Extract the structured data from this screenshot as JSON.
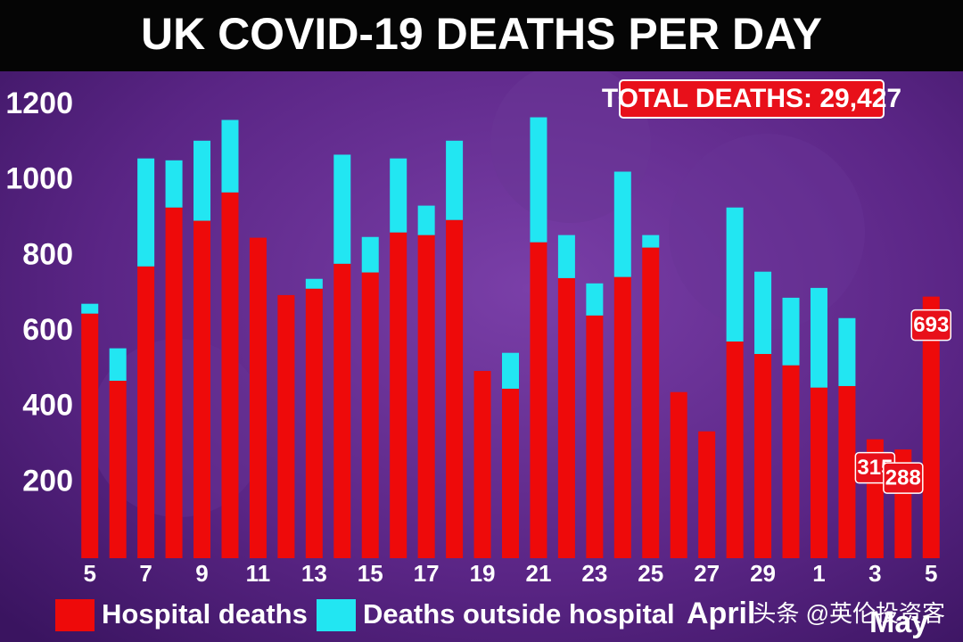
{
  "chart_data": {
    "type": "stacked_bar",
    "title": "UK COVID-19 DEATHS PER DAY",
    "annotation": "TOTAL DEATHS: 29,427",
    "categories": [
      "5",
      null,
      "7",
      null,
      "9",
      null,
      "11",
      null,
      "13",
      null,
      "15",
      null,
      "17",
      null,
      "19",
      null,
      "21",
      null,
      "23",
      null,
      "25",
      null,
      "27",
      null,
      "29",
      null,
      "1",
      null,
      "3",
      null,
      "5"
    ],
    "month_labels": [
      "April",
      "May"
    ],
    "series": [
      {
        "name": "Hospital deaths",
        "color": "#ee0a0a",
        "values": [
          648,
          470,
          773,
          929,
          894,
          969,
          849,
          697,
          714,
          780,
          757,
          863,
          856,
          896,
          496,
          449,
          837,
          742,
          643,
          745,
          823,
          440,
          336,
          574,
          541,
          511,
          452,
          456,
          315,
          288,
          693
        ],
        "value_labels": [
          null,
          null,
          null,
          null,
          null,
          null,
          null,
          null,
          null,
          null,
          null,
          null,
          null,
          null,
          null,
          null,
          null,
          null,
          null,
          null,
          null,
          null,
          null,
          null,
          null,
          null,
          null,
          null,
          "315",
          "288",
          "693"
        ]
      },
      {
        "name": "Deaths outside hospital",
        "color": "#22e6f2",
        "values": [
          26,
          86,
          286,
          125,
          212,
          192,
          0,
          0,
          26,
          289,
          94,
          196,
          78,
          210,
          0,
          95,
          331,
          114,
          85,
          279,
          33,
          0,
          0,
          355,
          218,
          179,
          264,
          180,
          0,
          0,
          0
        ]
      }
    ],
    "ylim": [
      0,
      1200
    ],
    "yticks": [
      200,
      400,
      600,
      800,
      1000,
      1200
    ],
    "grid": false,
    "watermark": "头条 @英伦投资客"
  }
}
